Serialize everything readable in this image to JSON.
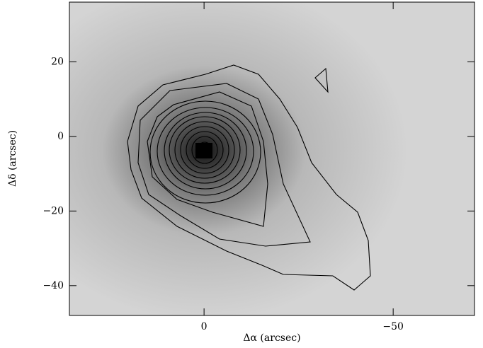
{
  "chart_data": {
    "type": "image",
    "x_label": "Δα (arcsec)",
    "y_label": "Δδ (arcsec)",
    "xlim": [
      35.6,
      -71.5
    ],
    "ylim": [
      -48,
      36
    ],
    "xticks": [
      0,
      {
        "value": -50,
        "label": "−50"
      }
    ],
    "yticks": [
      20,
      0,
      {
        "value": -20,
        "label": "−20"
      },
      {
        "value": -40,
        "label": "−40"
      }
    ]
  }
}
